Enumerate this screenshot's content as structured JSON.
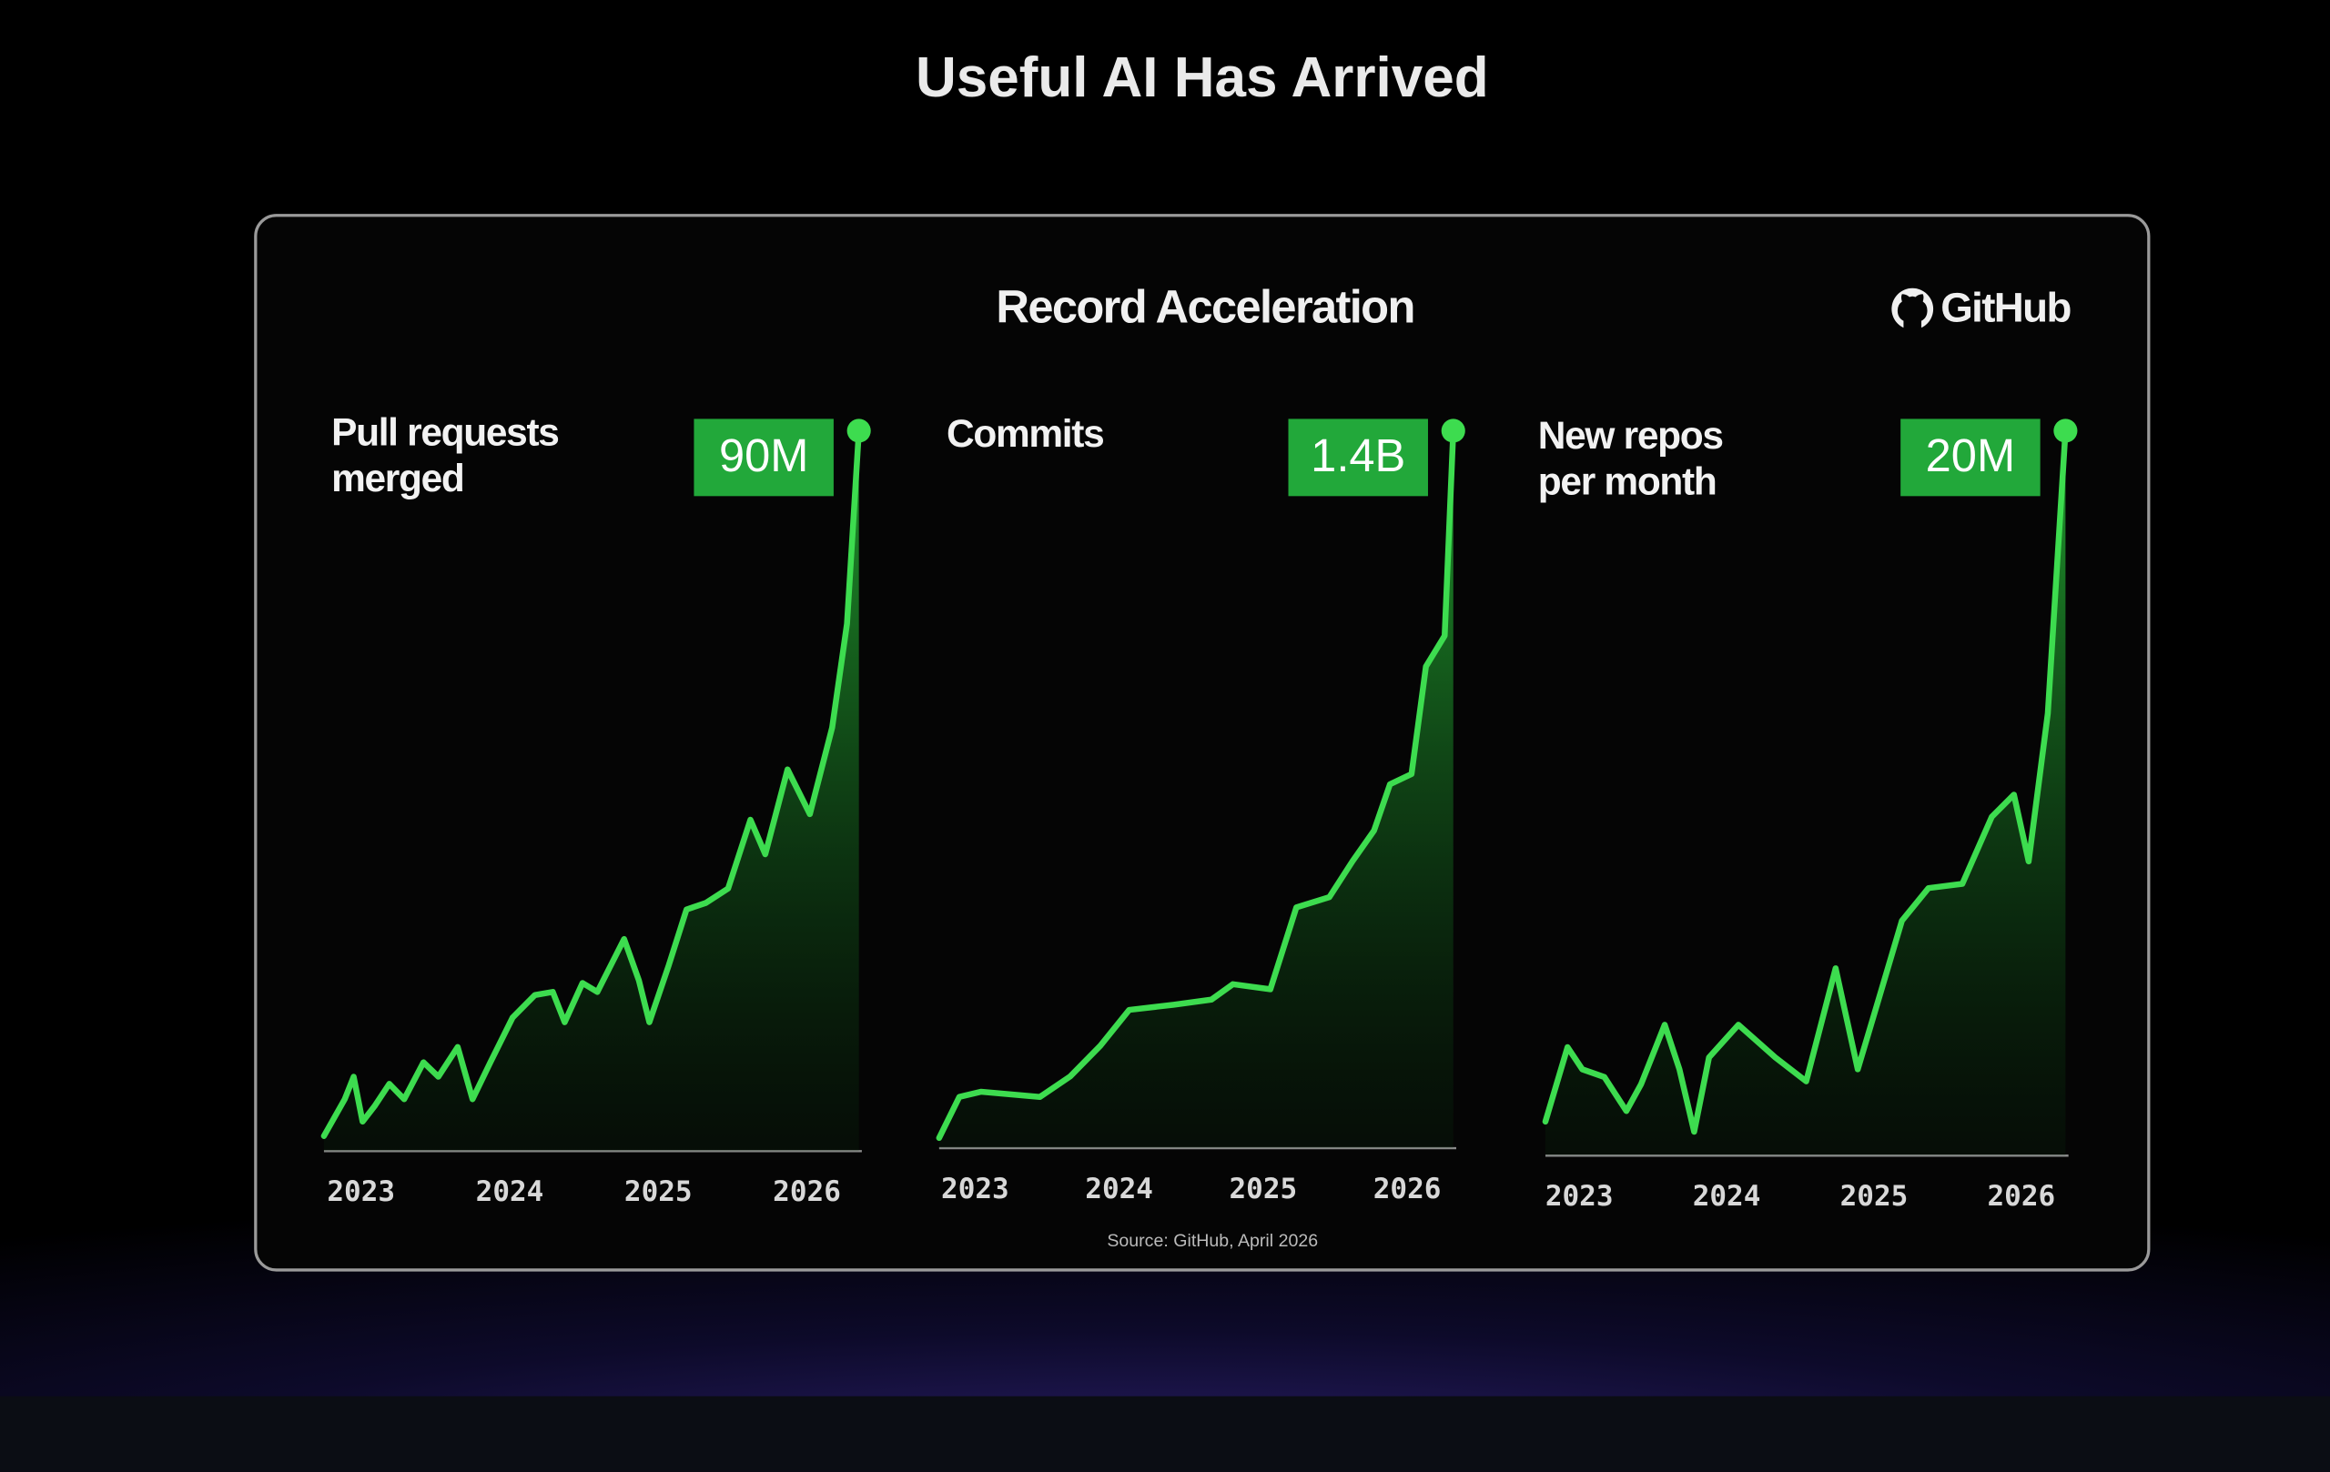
{
  "title": "Useful AI Has Arrived",
  "panel": {
    "title": "Record Acceleration",
    "logo": "GitHub",
    "source": "Source: GitHub, April 2026"
  },
  "chart_data": [
    {
      "type": "line",
      "title": [
        "Pull requests",
        "merged"
      ],
      "x": [
        2022.75,
        2022.89,
        2022.95,
        2023.01,
        2023.09,
        2023.19,
        2023.29,
        2023.42,
        2023.52,
        2023.65,
        2023.75,
        2023.87,
        2024.02,
        2024.17,
        2024.29,
        2024.37,
        2024.49,
        2024.59,
        2024.77,
        2024.87,
        2024.94,
        2025.07,
        2025.19,
        2025.32,
        2025.47,
        2025.62,
        2025.72,
        2025.87,
        2026.02,
        2026.17,
        2026.27,
        2026.35
      ],
      "values": [
        1.9,
        6.5,
        9.3,
        3.7,
        5.6,
        8.4,
        6.5,
        11.1,
        9.3,
        13.0,
        6.5,
        11.1,
        16.7,
        19.5,
        19.9,
        16.1,
        21.0,
        19.9,
        26.5,
        21.3,
        16.1,
        23.2,
        30.2,
        31.0,
        32.8,
        41.4,
        37.1,
        47.7,
        42.1,
        52.9,
        65.9,
        90
      ],
      "value_labels": [
        null,
        null,
        null,
        null,
        null,
        null,
        null,
        null,
        null,
        null,
        null,
        null,
        null,
        null,
        null,
        null,
        null,
        null,
        null,
        null,
        null,
        null,
        null,
        null,
        null,
        null,
        null,
        null,
        null,
        null,
        null,
        "90M"
      ],
      "color": "#3ddc4f",
      "xlim": [
        2022.75,
        2026.35
      ],
      "xticks": [
        2023,
        2024,
        2025,
        2026
      ],
      "ylim": [
        0,
        90
      ]
    },
    {
      "type": "line",
      "title": [
        "Commits"
      ],
      "x": [
        2022.75,
        2022.89,
        2023.04,
        2023.45,
        2023.66,
        2023.87,
        2024.07,
        2024.38,
        2024.64,
        2024.79,
        2025.05,
        2025.23,
        2025.46,
        2025.62,
        2025.77,
        2025.88,
        2026.03,
        2026.13,
        2026.26,
        2026.32
      ],
      "values": [
        0.02,
        0.1,
        0.11,
        0.1,
        0.14,
        0.2,
        0.27,
        0.28,
        0.29,
        0.32,
        0.31,
        0.47,
        0.49,
        0.56,
        0.62,
        0.71,
        0.73,
        0.94,
        1.0,
        1.4
      ],
      "value_labels": [
        null,
        null,
        null,
        null,
        null,
        null,
        null,
        null,
        null,
        null,
        null,
        null,
        null,
        null,
        null,
        null,
        null,
        null,
        null,
        "1.4B"
      ],
      "color": "#3ddc4f",
      "xlim": [
        2022.75,
        2026.32
      ],
      "xticks": [
        2023,
        2024,
        2025,
        2026
      ],
      "ylim": [
        0,
        1.4
      ]
    },
    {
      "type": "line",
      "title": [
        "New repos",
        "per month"
      ],
      "x": [
        2022.77,
        2022.92,
        2023.02,
        2023.17,
        2023.32,
        2023.42,
        2023.58,
        2023.68,
        2023.78,
        2023.88,
        2024.08,
        2024.33,
        2024.54,
        2024.74,
        2024.89,
        2025.04,
        2025.19,
        2025.37,
        2025.6,
        2025.8,
        2025.95,
        2026.05,
        2026.18,
        2026.3
      ],
      "values": [
        0.94,
        2.99,
        2.38,
        2.17,
        1.23,
        1.97,
        3.61,
        2.38,
        0.66,
        2.71,
        3.61,
        2.71,
        2.05,
        5.17,
        2.38,
        4.43,
        6.48,
        7.38,
        7.5,
        9.35,
        9.96,
        8.12,
        12.2,
        20
      ],
      "value_labels": [
        null,
        null,
        null,
        null,
        null,
        null,
        null,
        null,
        null,
        null,
        null,
        null,
        null,
        null,
        null,
        null,
        null,
        null,
        null,
        null,
        null,
        null,
        null,
        "20M"
      ],
      "color": "#3ddc4f",
      "xlim": [
        2022.77,
        2026.3
      ],
      "xticks": [
        2023,
        2024,
        2025,
        2026
      ],
      "ylim": [
        0,
        20
      ]
    }
  ]
}
